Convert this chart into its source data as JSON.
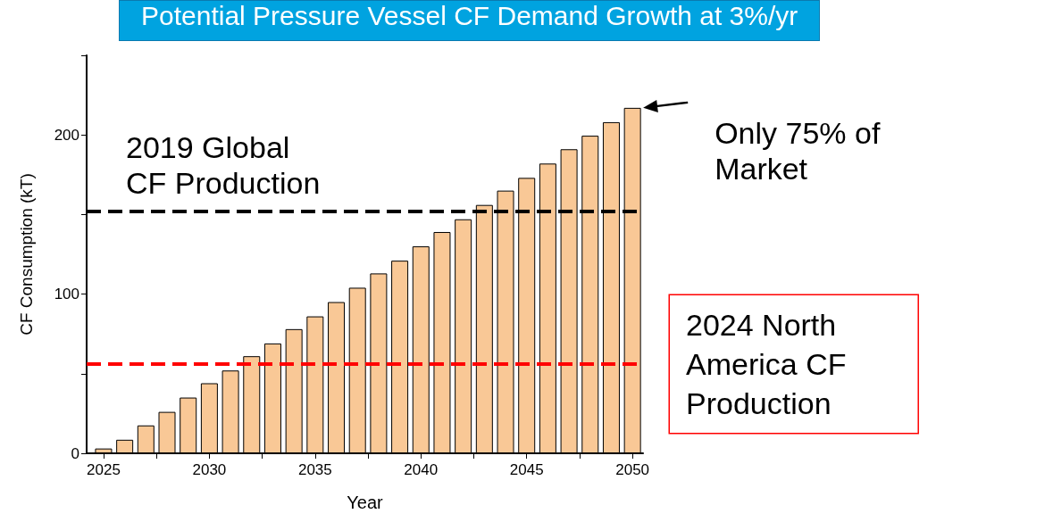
{
  "chart_data": {
    "type": "bar",
    "title": "Potential Pressure Vessel CF Demand Growth at 3%/yr",
    "xlabel": "Year",
    "ylabel": "CF Consumption (kT)",
    "x": [
      2025,
      2026,
      2027,
      2028,
      2029,
      2030,
      2031,
      2032,
      2033,
      2034,
      2035,
      2036,
      2037,
      2038,
      2039,
      2040,
      2041,
      2042,
      2043,
      2044,
      2045,
      2046,
      2047,
      2048,
      2049,
      2050
    ],
    "values": [
      3,
      8.5,
      17.5,
      26,
      35,
      44,
      52,
      61,
      69,
      78,
      86,
      95,
      104,
      113,
      121,
      130,
      139,
      147,
      156,
      165,
      173,
      182,
      191,
      199.5,
      208,
      217
    ],
    "color": "#f9c896",
    "xlim": [
      2024.2,
      2050.5
    ],
    "xticks": [
      2025,
      {
        "value": 2027.5,
        "label": null
      },
      2030,
      {
        "value": 2032.5,
        "label": null
      },
      2035,
      {
        "value": 2037.5,
        "label": null
      },
      2040,
      {
        "value": 2042.5,
        "label": null
      },
      2045,
      {
        "value": 2047.5,
        "label": null
      },
      2050
    ],
    "ylim": [
      0,
      250
    ],
    "yticks": [
      0,
      {
        "value": 50,
        "label": null
      },
      100,
      {
        "value": 150,
        "label": null
      },
      200,
      {
        "value": 250,
        "label": null
      }
    ],
    "ref_lines": [
      {
        "axis": "y",
        "value": 152,
        "label": "2019 Global\nCF Production",
        "color": "#000000",
        "line_style": "dashed"
      },
      {
        "axis": "y",
        "value": 56,
        "label": "2024 North\nAmerica CF\nProduction",
        "color": "#ff0000",
        "line_style": "dashed"
      }
    ],
    "annotations": [
      {
        "text": "Only 75% of\nMarket",
        "x": 2050,
        "y": 217
      }
    ]
  }
}
